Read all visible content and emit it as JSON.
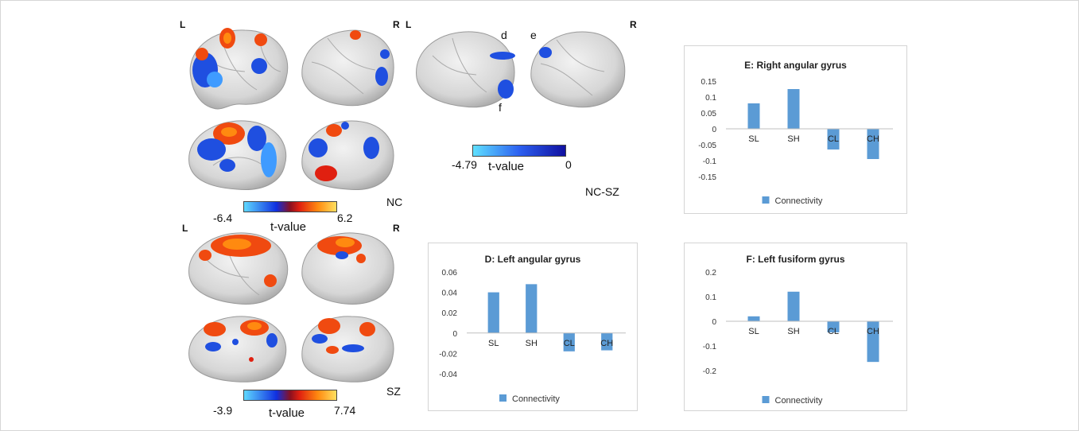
{
  "figure": {
    "nc_panel": {
      "left_label": "L",
      "right_label": "R",
      "group_label": "NC",
      "colorbar": {
        "min": "-6.4",
        "max": "6.2",
        "label": "t-value"
      }
    },
    "ncsz_panel": {
      "left_label": "L",
      "right_label": "R",
      "group_label": "NC-SZ",
      "region_labels": [
        "d",
        "e",
        "f"
      ],
      "colorbar": {
        "min": "-4.79",
        "max": "0",
        "label": "t-value"
      }
    },
    "sz_panel": {
      "left_label": "L",
      "right_label": "R",
      "group_label": "SZ",
      "colorbar": {
        "min": "-3.9",
        "max": "7.74",
        "label": "t-value"
      }
    }
  },
  "colors": {
    "bar": "#5b9bd5",
    "blue_activation": "#1f4fe0",
    "red_activation": "#f04a10",
    "brain": "#d9d9d9"
  },
  "chart_data": [
    {
      "id": "E",
      "type": "bar",
      "title": "E: Right angular gyrus",
      "categories": [
        "SL",
        "SH",
        "CL",
        "CH"
      ],
      "series": [
        {
          "name": "Connectivity",
          "values": [
            0.08,
            0.125,
            -0.065,
            -0.095
          ]
        }
      ],
      "ylim": [
        -0.15,
        0.15
      ],
      "yticks": [
        "0.15",
        "0.1",
        "0.05",
        "0",
        "-0.05",
        "-0.1",
        "-0.15"
      ],
      "grid": false,
      "legend": "bottom"
    },
    {
      "id": "D",
      "type": "bar",
      "title": "D: Left angular gyrus",
      "categories": [
        "SL",
        "SH",
        "CL",
        "CH"
      ],
      "series": [
        {
          "name": "Connectivity",
          "values": [
            0.04,
            0.048,
            -0.018,
            -0.017
          ]
        }
      ],
      "ylim": [
        -0.04,
        0.06
      ],
      "yticks": [
        "0.06",
        "0.04",
        "0.02",
        "0",
        "-0.02",
        "-0.04"
      ],
      "grid": false,
      "legend": "bottom"
    },
    {
      "id": "F",
      "type": "bar",
      "title": "F: Left fusiform gyrus",
      "categories": [
        "SL",
        "SH",
        "CL",
        "CH"
      ],
      "series": [
        {
          "name": "Connectivity",
          "values": [
            0.02,
            0.12,
            -0.045,
            -0.165
          ]
        }
      ],
      "ylim": [
        -0.2,
        0.2
      ],
      "yticks": [
        "0.2",
        "0.1",
        "0",
        "-0.1",
        "-0.2"
      ],
      "grid": false,
      "legend": "bottom"
    }
  ]
}
